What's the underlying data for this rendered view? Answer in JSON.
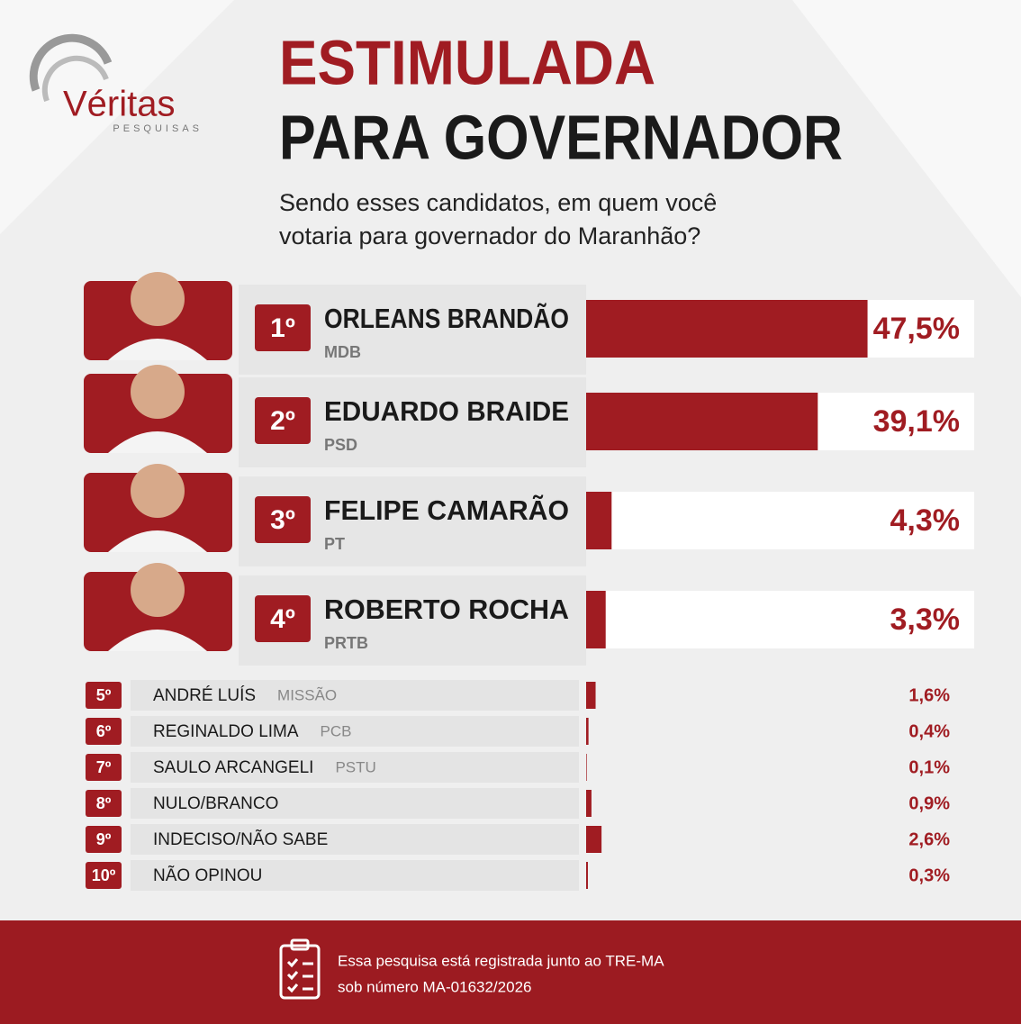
{
  "logo": {
    "name": "Véritas",
    "tagline": "PESQUISAS"
  },
  "chart_data": {
    "type": "bar",
    "title": "ESTIMULADA",
    "subtitle": "PARA GOVERNADOR",
    "question": [
      "Sendo esses candidatos, em quem você",
      "votaria para governador do Maranhão?"
    ],
    "ranks": [
      "1º",
      "2º",
      "3º",
      "4º",
      "5º",
      "6º",
      "7º",
      "8º",
      "9º",
      "10º"
    ],
    "categories": [
      "ORLEANS BRANDÃO",
      "EDUARDO BRAIDE",
      "FELIPE CAMARÃO",
      "ROBERTO ROCHA",
      "ANDRÉ LUÍS",
      "REGINALDO LIMA",
      "SAULO ARCANGELI",
      "NULO/BRANCO",
      "INDECISO/NÃO SABE",
      "NÃO OPINOU"
    ],
    "parties": [
      "MDB",
      "PSD",
      "PT",
      "PRTB",
      "MISSÃO",
      "PCB",
      "PSTU",
      null,
      null,
      null
    ],
    "values": [
      47.5,
      39.1,
      4.3,
      3.3,
      1.6,
      0.4,
      0.1,
      0.9,
      2.6,
      0.3
    ],
    "value_labels": [
      "47,5%",
      "39,1%",
      "4,3%",
      "3,3%",
      "1,6%",
      "0,4%",
      "0,1%",
      "0,9%",
      "2,6%",
      "0,3%"
    ],
    "color": "#a01c22"
  },
  "footer": [
    "Essa pesquisa está registrada junto ao TRE-MA",
    "sob número MA-01632/2026"
  ]
}
